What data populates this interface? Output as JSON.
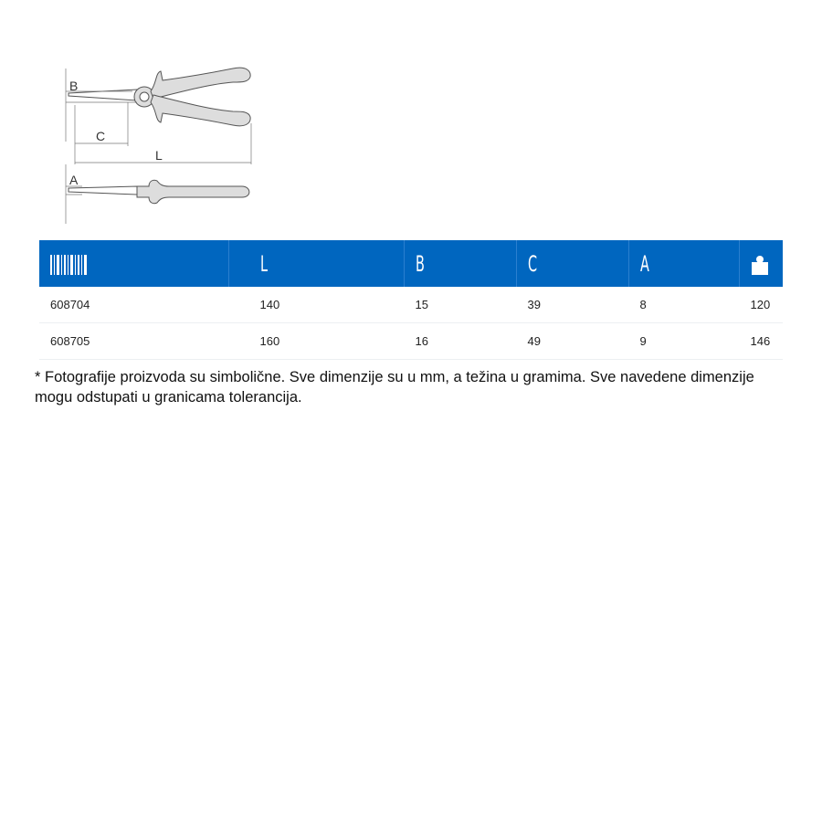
{
  "drawing": {
    "labels": {
      "B": "B",
      "C": "C",
      "L": "L",
      "A": "A"
    }
  },
  "table": {
    "headers": [
      {
        "icon": "barcode-icon",
        "label": ""
      },
      {
        "label": "L"
      },
      {
        "label": "B"
      },
      {
        "label": "C"
      },
      {
        "label": "A"
      },
      {
        "icon": "weight-icon",
        "label": ""
      }
    ],
    "rows": [
      [
        "608704",
        "140",
        "15",
        "39",
        "8",
        "120"
      ],
      [
        "608705",
        "160",
        "16",
        "49",
        "9",
        "146"
      ]
    ],
    "header_color": "#0066bf"
  },
  "note": "* Fotografije proizvoda su simbolične. Sve dimenzije su u mm, a težina u gramima. Sve navedene dimenzije mogu odstupati u granicama tolerancija."
}
